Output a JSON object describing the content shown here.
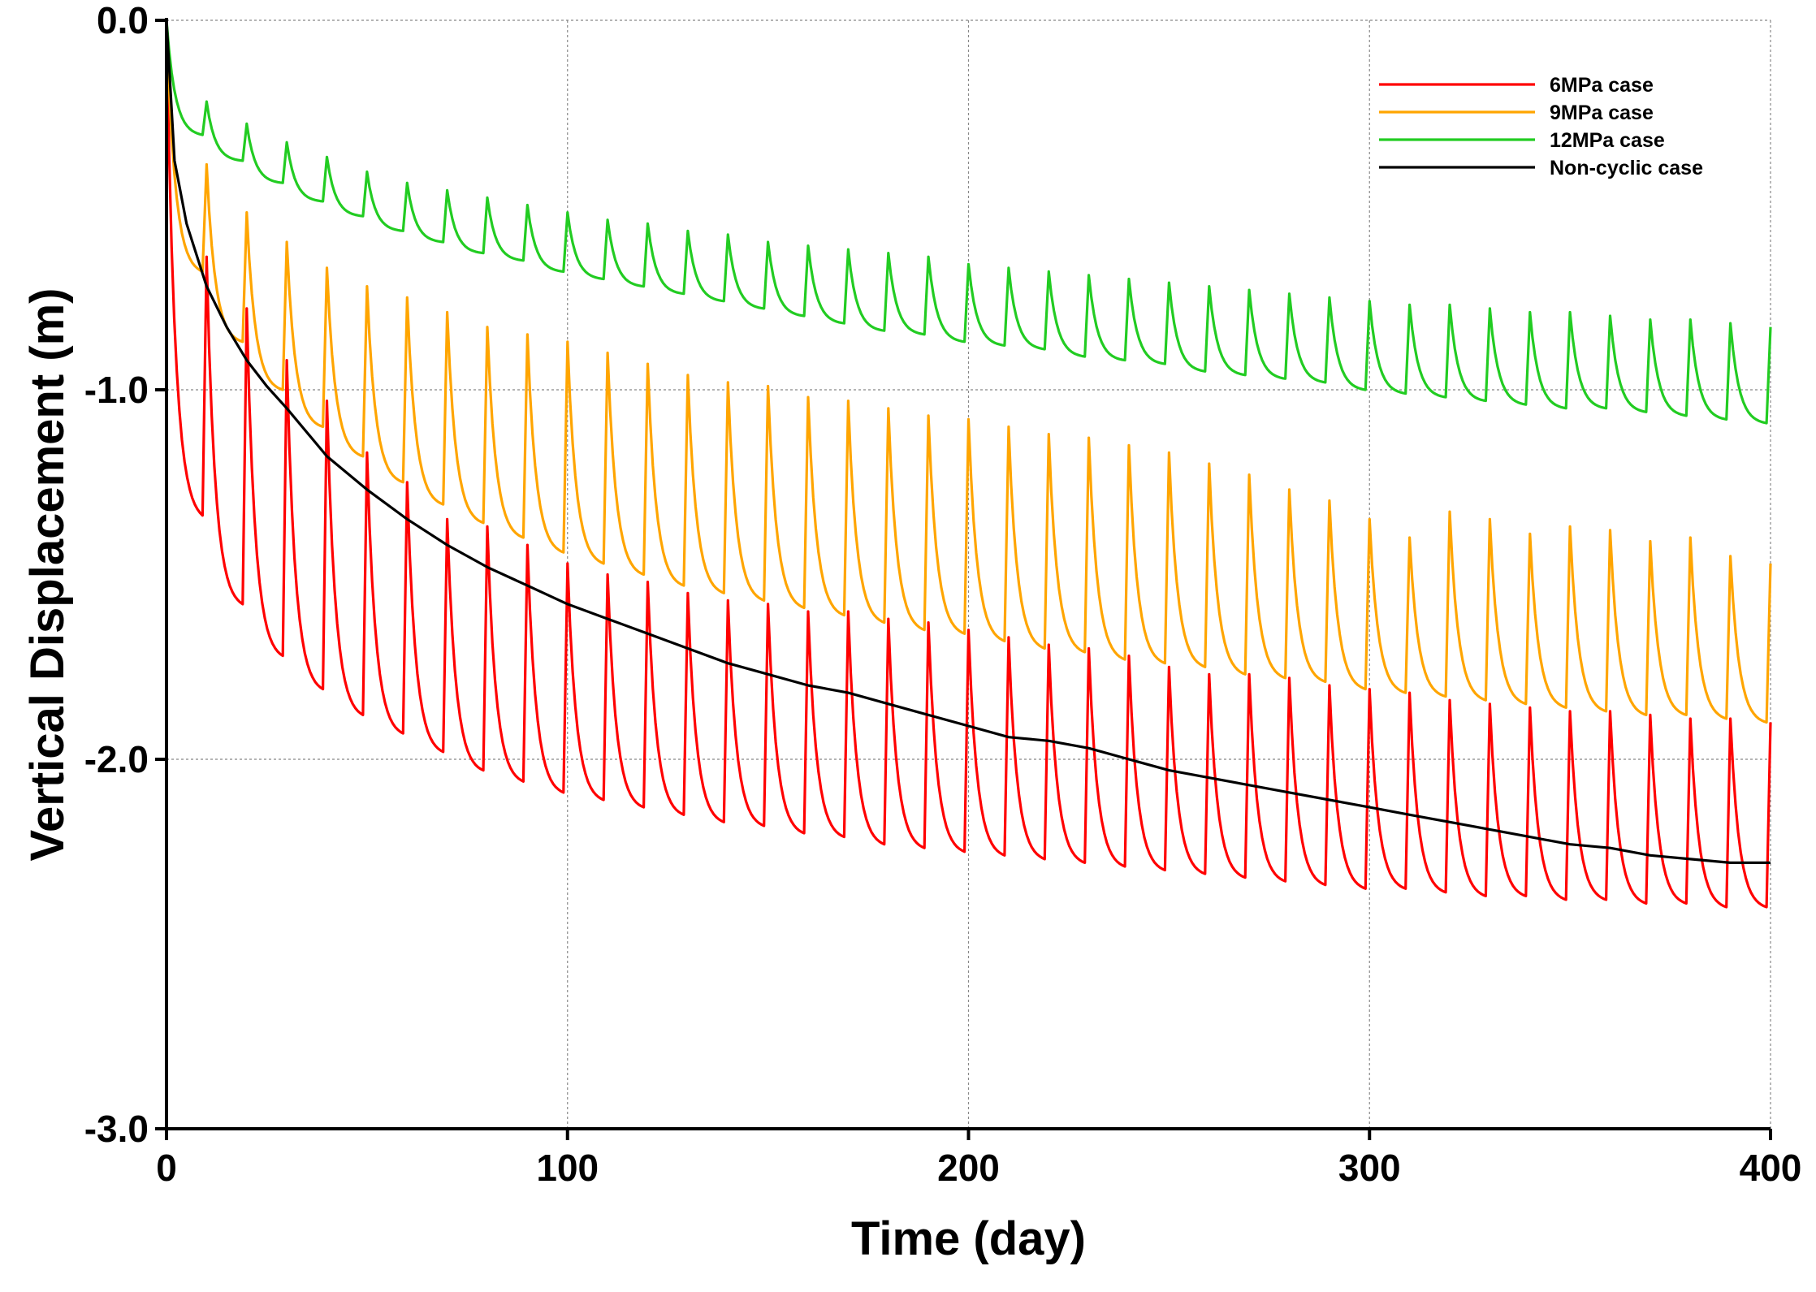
{
  "chart_data": {
    "type": "line",
    "title": "",
    "xlabel": "Time (day)",
    "ylabel": "Vertical Displacement (m)",
    "xlim": [
      0,
      400
    ],
    "ylim": [
      -3.0,
      0.0
    ],
    "xticks": [
      0,
      100,
      200,
      300,
      400
    ],
    "xtick_labels": [
      "0",
      "100",
      "200",
      "300",
      "400"
    ],
    "yticks": [
      0.0,
      -1.0,
      -2.0,
      -3.0
    ],
    "ytick_labels": [
      "0.0",
      "-1.0",
      "-2.0",
      "-3.0"
    ],
    "grid": true,
    "legend_position": "top-right",
    "cycle_period_days": 10,
    "series": [
      {
        "name": "6MPa case",
        "color": "#ff0000",
        "cyclic": true,
        "x": [
          0,
          9,
          10,
          19,
          20,
          29,
          30,
          39,
          40,
          49,
          50,
          59,
          60,
          69,
          70,
          79,
          80,
          89,
          90,
          99,
          100,
          109,
          110,
          119,
          120,
          129,
          130,
          139,
          140,
          149,
          150,
          159,
          160,
          169,
          170,
          179,
          180,
          189,
          190,
          199,
          200,
          209,
          210,
          219,
          220,
          229,
          230,
          239,
          240,
          249,
          250,
          259,
          260,
          269,
          270,
          279,
          280,
          289,
          290,
          299,
          300,
          309,
          310,
          319,
          320,
          329,
          330,
          339,
          340,
          349,
          350,
          359,
          360,
          369,
          370,
          379,
          380,
          389,
          390,
          399,
          400
        ],
        "y": [
          0.0,
          -1.34,
          -0.64,
          -1.58,
          -0.78,
          -1.72,
          -0.92,
          -1.81,
          -1.03,
          -1.88,
          -1.17,
          -1.93,
          -1.25,
          -1.98,
          -1.35,
          -2.03,
          -1.37,
          -2.06,
          -1.42,
          -2.09,
          -1.47,
          -2.11,
          -1.5,
          -2.13,
          -1.52,
          -2.15,
          -1.55,
          -2.17,
          -1.57,
          -2.18,
          -1.58,
          -2.2,
          -1.6,
          -2.21,
          -1.6,
          -2.23,
          -1.62,
          -2.24,
          -1.63,
          -2.25,
          -1.65,
          -2.26,
          -1.67,
          -2.27,
          -1.69,
          -2.28,
          -1.7,
          -2.29,
          -1.72,
          -2.3,
          -1.75,
          -2.31,
          -1.77,
          -2.32,
          -1.77,
          -2.33,
          -1.78,
          -2.34,
          -1.8,
          -2.35,
          -1.81,
          -2.35,
          -1.82,
          -2.36,
          -1.84,
          -2.37,
          -1.85,
          -2.37,
          -1.86,
          -2.38,
          -1.87,
          -2.38,
          -1.87,
          -2.39,
          -1.88,
          -2.39,
          -1.89,
          -2.4,
          -1.89,
          -2.4,
          -1.9
        ]
      },
      {
        "name": "9MPa case",
        "color": "#ffa500",
        "cyclic": true,
        "x": [
          0,
          9,
          10,
          19,
          20,
          29,
          30,
          39,
          40,
          49,
          50,
          59,
          60,
          69,
          70,
          79,
          80,
          89,
          90,
          99,
          100,
          109,
          110,
          119,
          120,
          129,
          130,
          139,
          140,
          149,
          150,
          159,
          160,
          169,
          170,
          179,
          180,
          189,
          190,
          199,
          200,
          209,
          210,
          219,
          220,
          229,
          230,
          239,
          240,
          249,
          250,
          259,
          260,
          269,
          270,
          279,
          280,
          289,
          290,
          299,
          300,
          309,
          310,
          319,
          320,
          329,
          330,
          339,
          340,
          349,
          350,
          359,
          360,
          369,
          370,
          379,
          380,
          389,
          390,
          399,
          400
        ],
        "y": [
          0.0,
          -0.68,
          -0.39,
          -0.87,
          -0.52,
          -1.0,
          -0.6,
          -1.1,
          -0.67,
          -1.18,
          -0.72,
          -1.25,
          -0.75,
          -1.31,
          -0.79,
          -1.36,
          -0.83,
          -1.4,
          -0.85,
          -1.44,
          -0.87,
          -1.47,
          -0.9,
          -1.5,
          -0.93,
          -1.53,
          -0.96,
          -1.55,
          -0.98,
          -1.57,
          -0.99,
          -1.59,
          -1.02,
          -1.61,
          -1.03,
          -1.63,
          -1.05,
          -1.65,
          -1.07,
          -1.66,
          -1.08,
          -1.68,
          -1.1,
          -1.7,
          -1.12,
          -1.71,
          -1.13,
          -1.73,
          -1.15,
          -1.74,
          -1.17,
          -1.75,
          -1.2,
          -1.77,
          -1.23,
          -1.78,
          -1.27,
          -1.79,
          -1.3,
          -1.81,
          -1.35,
          -1.82,
          -1.4,
          -1.83,
          -1.33,
          -1.84,
          -1.35,
          -1.85,
          -1.39,
          -1.86,
          -1.37,
          -1.87,
          -1.38,
          -1.88,
          -1.41,
          -1.88,
          -1.4,
          -1.89,
          -1.45,
          -1.9,
          -1.47
        ]
      },
      {
        "name": "12MPa case",
        "color": "#22cc22",
        "cyclic": true,
        "x": [
          0,
          9,
          10,
          19,
          20,
          29,
          30,
          39,
          40,
          49,
          50,
          59,
          60,
          69,
          70,
          79,
          80,
          89,
          90,
          99,
          100,
          109,
          110,
          119,
          120,
          129,
          130,
          139,
          140,
          149,
          150,
          159,
          160,
          169,
          170,
          179,
          180,
          189,
          190,
          199,
          200,
          209,
          210,
          219,
          220,
          229,
          230,
          239,
          240,
          249,
          250,
          259,
          260,
          269,
          270,
          279,
          280,
          289,
          290,
          299,
          300,
          309,
          310,
          319,
          320,
          329,
          330,
          339,
          340,
          349,
          350,
          359,
          360,
          369,
          370,
          379,
          380,
          389,
          390,
          399,
          400
        ],
        "y": [
          0.0,
          -0.31,
          -0.22,
          -0.38,
          -0.28,
          -0.44,
          -0.33,
          -0.49,
          -0.37,
          -0.53,
          -0.41,
          -0.57,
          -0.44,
          -0.6,
          -0.46,
          -0.63,
          -0.48,
          -0.65,
          -0.5,
          -0.68,
          -0.52,
          -0.7,
          -0.54,
          -0.72,
          -0.55,
          -0.74,
          -0.57,
          -0.76,
          -0.58,
          -0.78,
          -0.6,
          -0.8,
          -0.61,
          -0.82,
          -0.62,
          -0.84,
          -0.63,
          -0.85,
          -0.64,
          -0.87,
          -0.66,
          -0.88,
          -0.67,
          -0.89,
          -0.68,
          -0.91,
          -0.69,
          -0.92,
          -0.7,
          -0.93,
          -0.71,
          -0.95,
          -0.72,
          -0.96,
          -0.73,
          -0.97,
          -0.74,
          -0.98,
          -0.75,
          -1.0,
          -0.76,
          -1.01,
          -0.77,
          -1.02,
          -0.77,
          -1.03,
          -0.78,
          -1.04,
          -0.79,
          -1.05,
          -0.79,
          -1.05,
          -0.8,
          -1.06,
          -0.81,
          -1.07,
          -0.81,
          -1.08,
          -0.82,
          -1.09,
          -0.83
        ]
      },
      {
        "name": "Non-cyclic case",
        "color": "#000000",
        "cyclic": false,
        "x": [
          0,
          2,
          5,
          10,
          15,
          20,
          25,
          30,
          40,
          50,
          60,
          70,
          80,
          90,
          100,
          110,
          120,
          130,
          140,
          150,
          160,
          170,
          180,
          190,
          200,
          210,
          220,
          230,
          240,
          250,
          260,
          270,
          280,
          290,
          300,
          310,
          320,
          330,
          340,
          350,
          360,
          370,
          380,
          390,
          400
        ],
        "y": [
          0.0,
          -0.38,
          -0.55,
          -0.72,
          -0.83,
          -0.92,
          -0.99,
          -1.05,
          -1.18,
          -1.27,
          -1.35,
          -1.42,
          -1.48,
          -1.53,
          -1.58,
          -1.62,
          -1.66,
          -1.7,
          -1.74,
          -1.77,
          -1.8,
          -1.82,
          -1.85,
          -1.88,
          -1.91,
          -1.94,
          -1.95,
          -1.97,
          -2.0,
          -2.03,
          -2.05,
          -2.07,
          -2.09,
          -2.11,
          -2.13,
          -2.15,
          -2.17,
          -2.19,
          -2.21,
          -2.23,
          -2.24,
          -2.26,
          -2.27,
          -2.28,
          -2.28
        ]
      }
    ]
  }
}
